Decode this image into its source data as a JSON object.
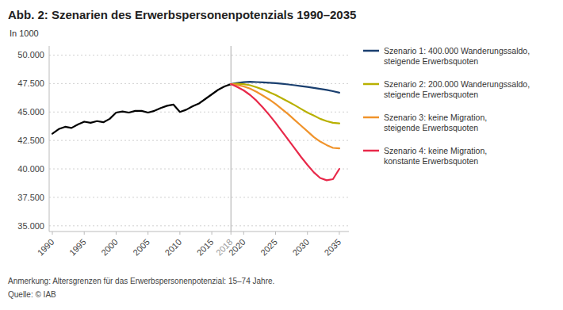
{
  "chart_data": {
    "type": "line",
    "title": "Abb. 2: Szenarien des Erwerbspersonenpotenzials 1990–2035",
    "ylabel": "In 1000",
    "annotations": [
      "Anmerkung: Altersgrenzen für das Erwerbspersonenpotenzial: 15–74 Jahre.",
      "Quelle: © IAB"
    ],
    "xlim": [
      1989.5,
      2036.5
    ],
    "xticks": [
      1990,
      1995,
      2000,
      2005,
      2010,
      2015,
      2018,
      2020,
      2025,
      2030,
      2035
    ],
    "ylim": [
      34500,
      50800
    ],
    "yticks": [
      {
        "value": 35000,
        "label": "35.000"
      },
      {
        "value": 37500,
        "label": "37.500"
      },
      {
        "value": 40000,
        "label": "40.000"
      },
      {
        "value": 42500,
        "label": "42.500"
      },
      {
        "value": 45000,
        "label": "45.000"
      },
      {
        "value": 47500,
        "label": "47.500"
      },
      {
        "value": 50000,
        "label": "50.000"
      }
    ],
    "vline_x": 2018,
    "grid": true,
    "legend": "right",
    "series": [
      {
        "color": "#000000",
        "x": [
          1990,
          1991,
          1992,
          1993,
          1994,
          1995,
          1996,
          1997,
          1998,
          1999,
          2000,
          2001,
          2002,
          2003,
          2004,
          2005,
          2006,
          2007,
          2008,
          2009,
          2010,
          2011,
          2012,
          2013,
          2014,
          2015,
          2016,
          2017,
          2018
        ],
        "values": [
          43100,
          43500,
          43700,
          43600,
          43900,
          44150,
          44050,
          44200,
          44100,
          44400,
          44950,
          45050,
          44950,
          45100,
          45100,
          44950,
          45100,
          45350,
          45550,
          45650,
          45000,
          45200,
          45500,
          45750,
          46150,
          46550,
          46950,
          47250,
          47450
        ]
      },
      {
        "name": "Szenario 1: 400.000 Wanderungssaldo,\nsteigende Erwerbsquoten",
        "color": "#1a3f6f",
        "x": [
          2018,
          2019,
          2020,
          2021,
          2022,
          2023,
          2024,
          2025,
          2026,
          2027,
          2028,
          2029,
          2030,
          2031,
          2032,
          2033,
          2034,
          2035
        ],
        "values": [
          47450,
          47550,
          47620,
          47650,
          47630,
          47600,
          47570,
          47530,
          47480,
          47420,
          47350,
          47270,
          47200,
          47120,
          47030,
          46940,
          46830,
          46700
        ]
      },
      {
        "name": "Szenario 2: 200.000 Wanderungssaldo,\nsteigende Erwerbsquoten",
        "color": "#b8b000",
        "x": [
          2018,
          2019,
          2020,
          2021,
          2022,
          2023,
          2024,
          2025,
          2026,
          2027,
          2028,
          2029,
          2030,
          2031,
          2032,
          2033,
          2034,
          2035
        ],
        "values": [
          47450,
          47480,
          47450,
          47350,
          47180,
          46980,
          46750,
          46500,
          46200,
          45900,
          45600,
          45270,
          44950,
          44680,
          44400,
          44200,
          44050,
          44000
        ]
      },
      {
        "name": "Szenario 3: keine Migration,\nsteigende Erwerbsquoten",
        "color": "#f0932b",
        "x": [
          2018,
          2019,
          2020,
          2021,
          2022,
          2023,
          2024,
          2025,
          2026,
          2027,
          2028,
          2029,
          2030,
          2031,
          2032,
          2033,
          2034,
          2035
        ],
        "values": [
          47450,
          47380,
          47250,
          47050,
          46780,
          46450,
          46100,
          45700,
          45250,
          44800,
          44300,
          43800,
          43300,
          42800,
          42400,
          42100,
          41850,
          41800
        ]
      },
      {
        "name": "Szenario 4: keine Migration,\nkonstante Erwerbsquoten",
        "color": "#e8294a",
        "x": [
          2018,
          2019,
          2020,
          2021,
          2022,
          2023,
          2024,
          2025,
          2026,
          2027,
          2028,
          2029,
          2030,
          2031,
          2032,
          2033,
          2034,
          2035
        ],
        "values": [
          47450,
          47200,
          46900,
          46500,
          46000,
          45400,
          44750,
          44050,
          43300,
          42550,
          41800,
          41050,
          40350,
          39700,
          39200,
          39000,
          39100,
          40000
        ]
      }
    ]
  }
}
